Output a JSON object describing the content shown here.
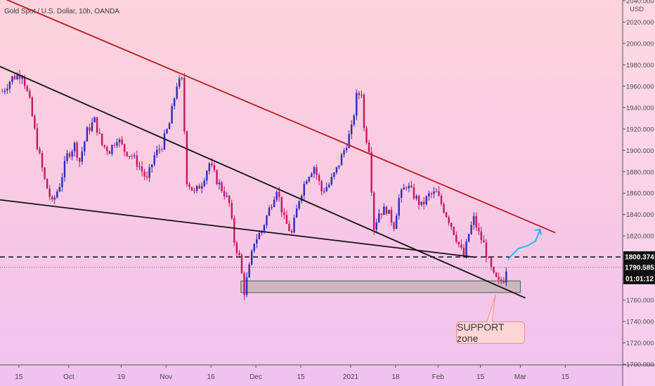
{
  "chart_title": "Gold Spot / U.S. Dollar, 10h, OANDA",
  "axis_currency": "USD",
  "price_tags": {
    "dashed_level": "1800.374",
    "current_price": "1790.585",
    "countdown": "01:01:12"
  },
  "annotation": {
    "support_label": "SUPPORT zone"
  },
  "colors": {
    "up_candle": "#2b2bb8",
    "down_candle": "#c2185b",
    "resistance_line": "#b71c1c",
    "trend_line": "#111111",
    "support_zone_fill": "#c9b1b8",
    "support_zone_border": "#3d6b3d",
    "forecast_arrow": "#29b6f6"
  },
  "chart_data": {
    "type": "candlestick",
    "title": "Gold Spot / U.S. Dollar, 10h, OANDA",
    "ylabel": "USD",
    "ylim": [
      1700,
      2040
    ],
    "y_ticks": [
      "2040.000",
      "2020.000",
      "2000.000",
      "1980.000",
      "1960.000",
      "1940.000",
      "1920.000",
      "1900.000",
      "1880.000",
      "1860.000",
      "1840.000",
      "1820.000",
      "1800.000",
      "1780.000",
      "1760.000",
      "1740.000",
      "1720.000",
      "1700.000"
    ],
    "x_ticks": [
      "15",
      "Oct",
      "19",
      "Nov",
      "16",
      "Dec",
      "15",
      "2021",
      "18",
      "Feb",
      "15",
      "Mar",
      "15"
    ],
    "price_path": [
      [
        0,
        1955
      ],
      [
        4,
        1968
      ],
      [
        8,
        1972
      ],
      [
        11,
        1945
      ],
      [
        14,
        1905
      ],
      [
        17,
        1872
      ],
      [
        20,
        1850
      ],
      [
        23,
        1868
      ],
      [
        26,
        1895
      ],
      [
        29,
        1905
      ],
      [
        31,
        1890
      ],
      [
        34,
        1918
      ],
      [
        37,
        1928
      ],
      [
        40,
        1905
      ],
      [
        43,
        1900
      ],
      [
        46,
        1912
      ],
      [
        49,
        1900
      ],
      [
        52,
        1895
      ],
      [
        55,
        1885
      ],
      [
        58,
        1872
      ],
      [
        61,
        1895
      ],
      [
        64,
        1905
      ],
      [
        67,
        1925
      ],
      [
        70,
        1962
      ],
      [
        72,
        1965
      ],
      [
        74,
        1872
      ],
      [
        77,
        1860
      ],
      [
        80,
        1870
      ],
      [
        83,
        1888
      ],
      [
        86,
        1872
      ],
      [
        89,
        1860
      ],
      [
        91,
        1850
      ],
      [
        93,
        1815
      ],
      [
        95,
        1800
      ],
      [
        97,
        1768
      ],
      [
        99,
        1790
      ],
      [
        101,
        1815
      ],
      [
        104,
        1825
      ],
      [
        107,
        1845
      ],
      [
        110,
        1865
      ],
      [
        113,
        1835
      ],
      [
        116,
        1822
      ],
      [
        119,
        1855
      ],
      [
        122,
        1875
      ],
      [
        125,
        1885
      ],
      [
        128,
        1862
      ],
      [
        131,
        1868
      ],
      [
        134,
        1882
      ],
      [
        137,
        1900
      ],
      [
        140,
        1920
      ],
      [
        142,
        1950
      ],
      [
        144,
        1955
      ],
      [
        145,
        1920
      ],
      [
        147,
        1902
      ],
      [
        149,
        1828
      ],
      [
        151,
        1842
      ],
      [
        154,
        1845
      ],
      [
        157,
        1830
      ],
      [
        159,
        1855
      ],
      [
        162,
        1868
      ],
      [
        165,
        1858
      ],
      [
        168,
        1848
      ],
      [
        171,
        1858
      ],
      [
        174,
        1860
      ],
      [
        177,
        1845
      ],
      [
        180,
        1830
      ],
      [
        183,
        1812
      ],
      [
        185,
        1800
      ],
      [
        187,
        1822
      ],
      [
        189,
        1836
      ],
      [
        191,
        1822
      ],
      [
        193,
        1812
      ],
      [
        195,
        1795
      ],
      [
        197,
        1782
      ],
      [
        199,
        1776
      ],
      [
        201,
        1780
      ],
      [
        202,
        1790
      ]
    ],
    "resistance_line": [
      [
        -5,
        2048
      ],
      [
        222,
        1823
      ]
    ],
    "trend_line_upper": [
      [
        -5,
        1983
      ],
      [
        210,
        1762
      ]
    ],
    "trend_line_lower": [
      [
        -5,
        1855
      ],
      [
        190,
        1800
      ]
    ],
    "support_zone": {
      "y_low": 1767,
      "y_high": 1778,
      "x_start": 96,
      "x_end": 208
    },
    "horizontal_level": 1800.374,
    "last_price": 1790.585,
    "forecast_arrow": [
      [
        203,
        1798
      ],
      [
        207,
        1808
      ],
      [
        211,
        1811
      ],
      [
        214,
        1815
      ],
      [
        216,
        1826
      ]
    ]
  }
}
